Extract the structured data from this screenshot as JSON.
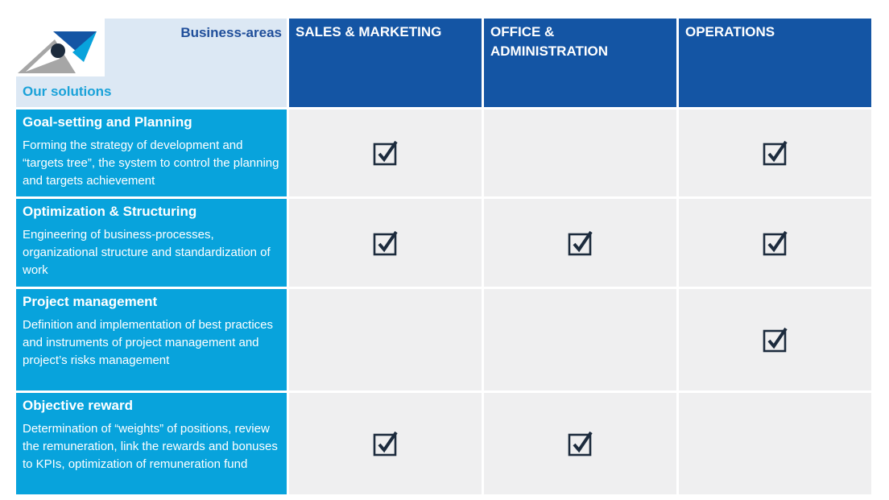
{
  "header": {
    "business_areas_label": "Business-areas",
    "our_solutions_label": "Our solutions"
  },
  "columns": [
    {
      "label": "SALES  &  MARKETING"
    },
    {
      "label": "OFFICE &\nADMINISTRATION"
    },
    {
      "label": "OPERATIONS"
    }
  ],
  "rows": [
    {
      "title": "Goal-setting and Planning",
      "description": "Forming the strategy of development  and “targets tree”, the system to control the planning and  targets achievement",
      "checks": [
        true,
        false,
        true
      ]
    },
    {
      "title": "Optimization & Structuring",
      "description": "Engineering  of business-processes, organizational structure and standardization of work",
      "checks": [
        true,
        true,
        true
      ]
    },
    {
      "title": "Project management",
      "description": "Definition and implementation of best practices and instruments of project management and project’s risks management",
      "checks": [
        false,
        false,
        true
      ]
    },
    {
      "title": "Objective reward",
      "description": "Determination of “weights” of positions, review the remuneration, link the rewards and bonuses to KPIs, optimization of remuneration fund",
      "checks": [
        true,
        true,
        false
      ]
    }
  ],
  "colors": {
    "column_header": "#1455a4",
    "row_header": "#08a3dc",
    "corner": "#dce8f4",
    "cell": "#efeff0",
    "check": "#1c2b3d"
  },
  "icons": {
    "logo": "company-logo-icon",
    "check": "checked-box-icon"
  }
}
